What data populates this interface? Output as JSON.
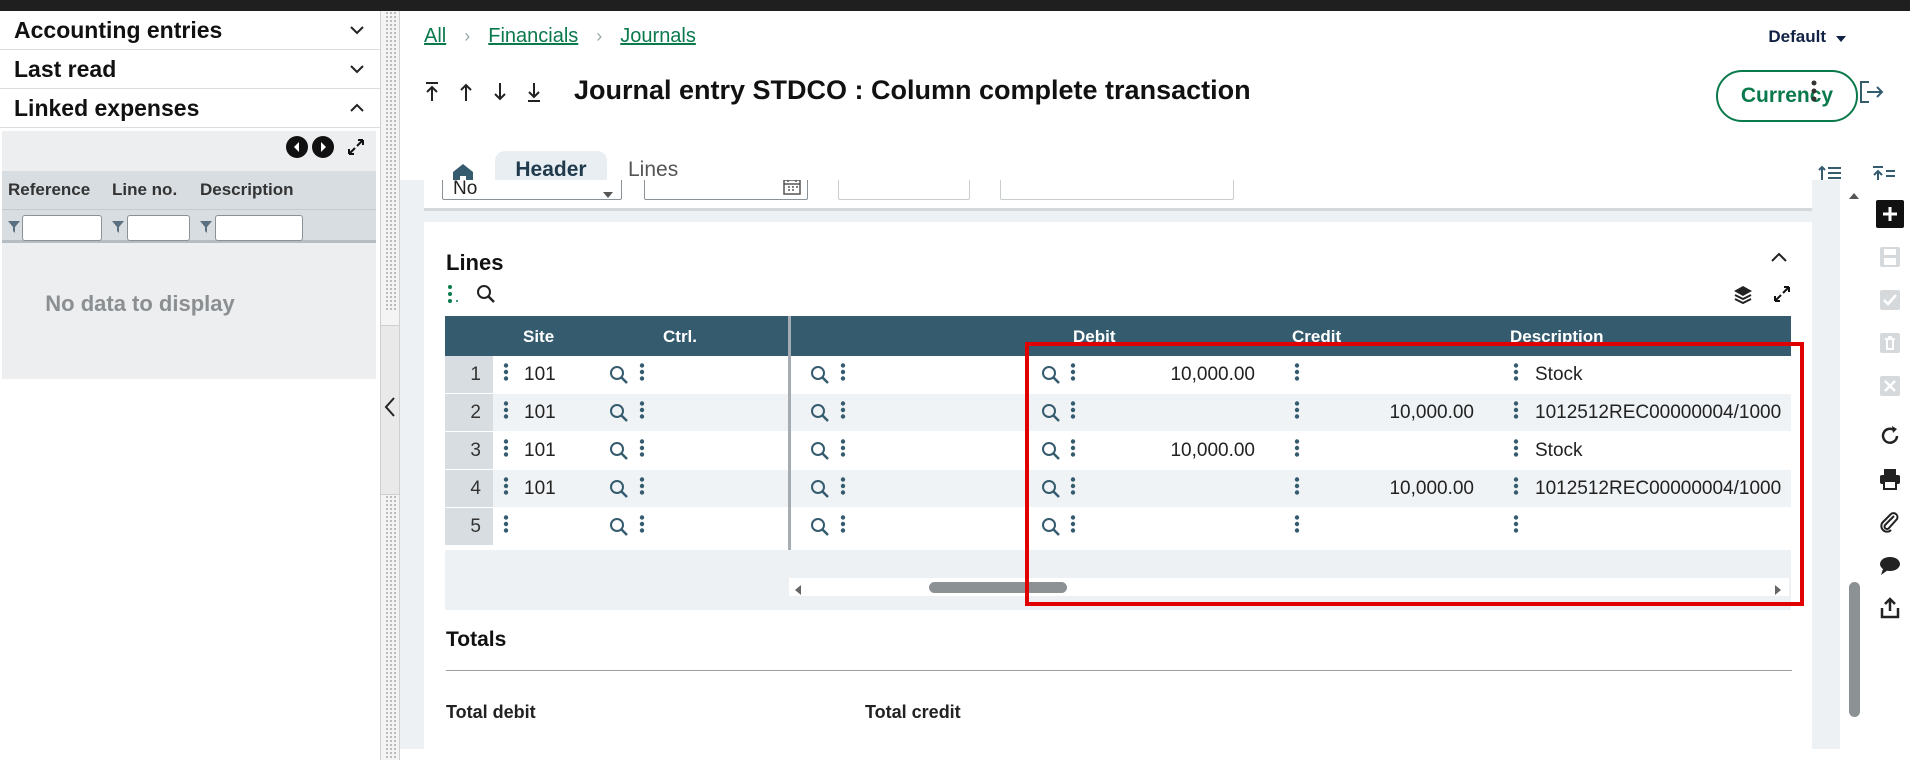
{
  "left_panel": {
    "sections": [
      {
        "label": "Accounting entries",
        "state": "collapsed"
      },
      {
        "label": "Last read",
        "state": "collapsed"
      },
      {
        "label": "Linked expenses",
        "state": "expanded"
      }
    ],
    "columns": [
      "Reference",
      "Line no.",
      "Description"
    ],
    "empty_text": "No data to display"
  },
  "breadcrumb": [
    "All",
    "Financials",
    "Journals"
  ],
  "view_selector": "Default",
  "page_title": "Journal entry STDCO : Column complete transaction",
  "currency_button": "Currency",
  "tabs": {
    "header": "Header",
    "lines": "Lines"
  },
  "header_fields": {
    "select_value": "No"
  },
  "lines_section": {
    "title": "Lines",
    "columns": {
      "site": "Site",
      "ctrl": "Ctrl.",
      "debit": "Debit",
      "credit": "Credit",
      "description": "Description"
    },
    "rows": [
      {
        "n": "1",
        "site": "101",
        "debit": "10,000.00",
        "credit": "",
        "description": "Stock"
      },
      {
        "n": "2",
        "site": "101",
        "debit": "",
        "credit": "10,000.00",
        "description": "1012512REC00000004/1000"
      },
      {
        "n": "3",
        "site": "101",
        "debit": "10,000.00",
        "credit": "",
        "description": "Stock"
      },
      {
        "n": "4",
        "site": "101",
        "debit": "",
        "credit": "10,000.00",
        "description": "1012512REC00000004/1000"
      },
      {
        "n": "5",
        "site": "",
        "debit": "",
        "credit": "",
        "description": ""
      }
    ],
    "horizontal_scroll": 0.15
  },
  "totals": {
    "title": "Totals",
    "total_debit_label": "Total debit",
    "total_credit_label": "Total credit"
  },
  "colors": {
    "accent": "#0a7a4c",
    "grid_header": "#355b6f",
    "highlight": "#e00000"
  }
}
